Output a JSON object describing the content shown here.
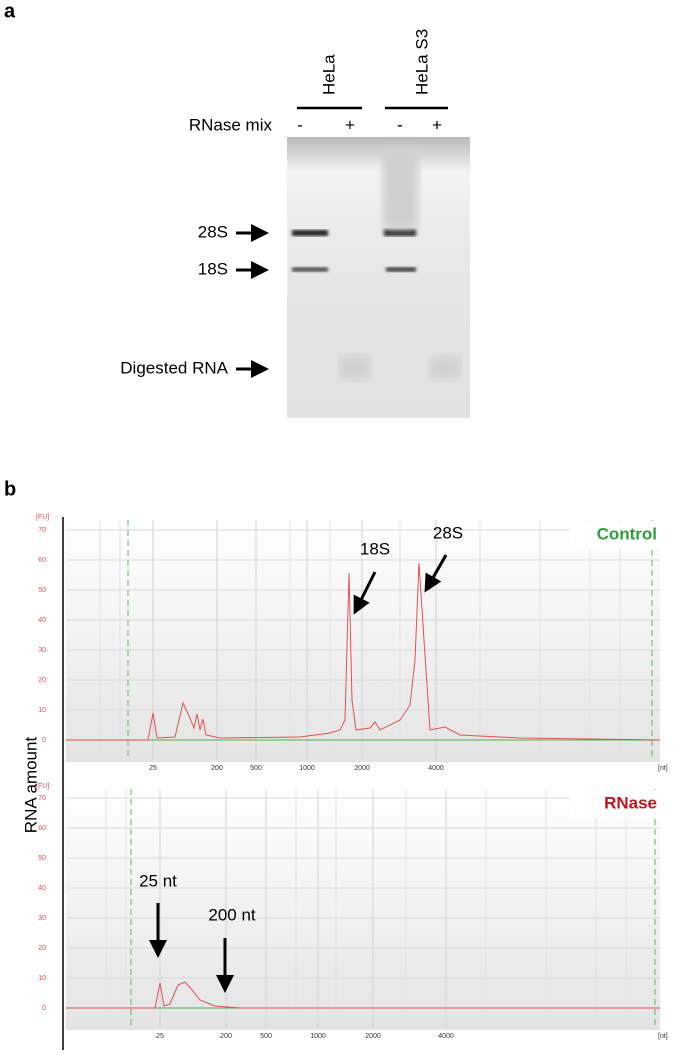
{
  "panel_a": {
    "label": "a",
    "lanes": [
      "HeLa",
      "HeLa S3"
    ],
    "treatment": "RNase mix",
    "signs": [
      "-",
      "+",
      "-",
      "+"
    ],
    "bands": [
      "28S",
      "18S",
      "Digested RNA"
    ]
  },
  "panel_b": {
    "label": "b",
    "y_label": "RNA amount",
    "charts": [
      {
        "title": "Control",
        "title_color": "#2e9e3e",
        "y_unit": "[FU]",
        "x_unit": "[nt]",
        "yticks": [
          0,
          10,
          20,
          30,
          40,
          50,
          60,
          70
        ],
        "xticks": [
          25,
          200,
          500,
          1000,
          2000,
          4000
        ],
        "annotations": [
          "18S",
          "28S"
        ]
      },
      {
        "title": "RNase",
        "title_color": "#c0161b",
        "y_unit": "[FU]",
        "x_unit": "[nt]",
        "yticks": [
          0,
          10,
          20,
          30,
          40,
          50,
          60,
          70
        ],
        "xticks": [
          25,
          200,
          500,
          1000,
          2000,
          4000
        ],
        "annotations": [
          "25 nt",
          "200 nt"
        ]
      }
    ]
  }
}
